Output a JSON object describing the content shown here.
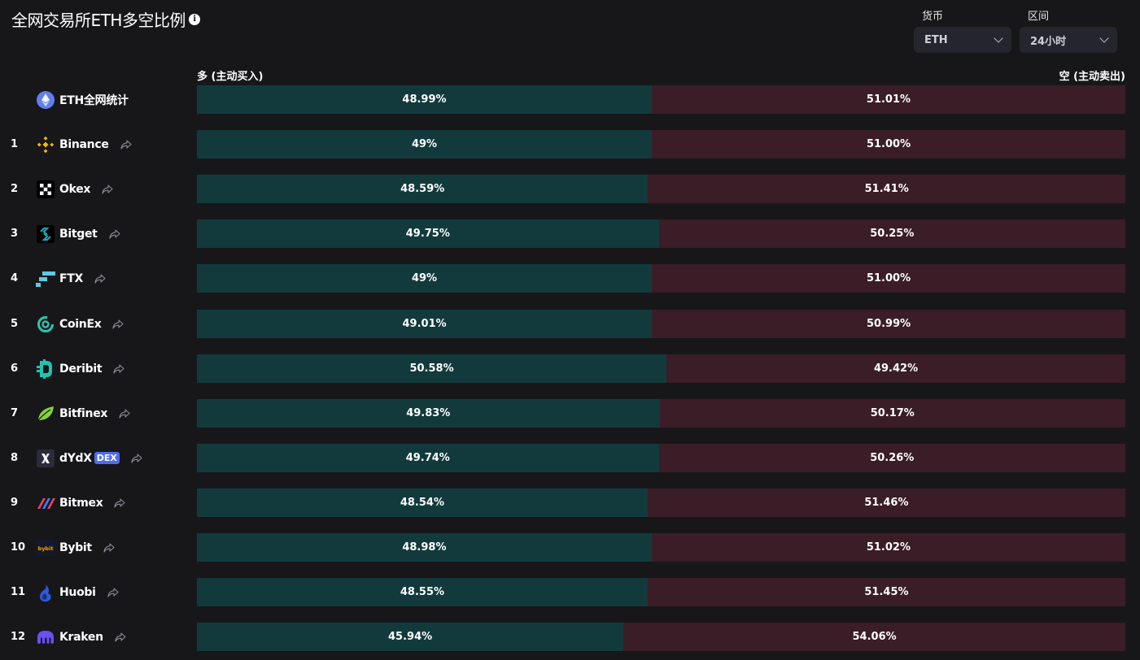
{
  "header": {
    "title": "全网交易所ETH多空比例",
    "info_icon": "info-icon"
  },
  "filters": {
    "currency": {
      "label": "货币",
      "value": "ETH"
    },
    "period": {
      "label": "区间",
      "value": "24小时"
    }
  },
  "labels": {
    "long": "多 (主动买入)",
    "short": "空 (主动卖出)"
  },
  "colors": {
    "long_bar": "#123a3c",
    "short_bar": "#3a1d26",
    "background": "#17171a"
  },
  "chart_data": {
    "type": "bar",
    "stacked": true,
    "orientation": "horizontal",
    "categories": [
      "ETH全网统计",
      "Binance",
      "Okex",
      "Bitget",
      "FTX",
      "CoinEx",
      "Deribit",
      "Bitfinex",
      "dYdX",
      "Bitmex",
      "Bybit",
      "Huobi",
      "Kraken"
    ],
    "series": [
      {
        "name": "多 (主动买入)",
        "values": [
          48.99,
          49,
          48.59,
          49.75,
          49,
          49.01,
          50.58,
          49.83,
          49.74,
          48.54,
          48.98,
          48.55,
          45.94
        ]
      },
      {
        "name": "空 (主动卖出)",
        "values": [
          51.01,
          51.0,
          51.41,
          50.25,
          51.0,
          50.99,
          49.42,
          50.17,
          50.26,
          51.46,
          51.02,
          51.45,
          54.06
        ]
      }
    ],
    "xlim": [
      0,
      100
    ]
  },
  "rows": [
    {
      "rank": "",
      "name": "ETH全网统计",
      "icon": "ethereum-icon",
      "long": "48.99%",
      "short": "51.01%",
      "long_pct": 48.99,
      "badge": "",
      "shareable": false
    },
    {
      "rank": "1",
      "name": "Binance",
      "icon": "binance-icon",
      "long": "49%",
      "short": "51.00%",
      "long_pct": 49,
      "badge": "",
      "shareable": true
    },
    {
      "rank": "2",
      "name": "Okex",
      "icon": "okex-icon",
      "long": "48.59%",
      "short": "51.41%",
      "long_pct": 48.59,
      "badge": "",
      "shareable": true
    },
    {
      "rank": "3",
      "name": "Bitget",
      "icon": "bitget-icon",
      "long": "49.75%",
      "short": "50.25%",
      "long_pct": 49.75,
      "badge": "",
      "shareable": true
    },
    {
      "rank": "4",
      "name": "FTX",
      "icon": "ftx-icon",
      "long": "49%",
      "short": "51.00%",
      "long_pct": 49,
      "badge": "",
      "shareable": true
    },
    {
      "rank": "5",
      "name": "CoinEx",
      "icon": "coinex-icon",
      "long": "49.01%",
      "short": "50.99%",
      "long_pct": 49.01,
      "badge": "",
      "shareable": true
    },
    {
      "rank": "6",
      "name": "Deribit",
      "icon": "deribit-icon",
      "long": "50.58%",
      "short": "49.42%",
      "long_pct": 50.58,
      "badge": "",
      "shareable": true
    },
    {
      "rank": "7",
      "name": "Bitfinex",
      "icon": "bitfinex-icon",
      "long": "49.83%",
      "short": "50.17%",
      "long_pct": 49.83,
      "badge": "",
      "shareable": true
    },
    {
      "rank": "8",
      "name": "dYdX",
      "icon": "dydx-icon",
      "long": "49.74%",
      "short": "50.26%",
      "long_pct": 49.74,
      "badge": "DEX",
      "shareable": true
    },
    {
      "rank": "9",
      "name": "Bitmex",
      "icon": "bitmex-icon",
      "long": "48.54%",
      "short": "51.46%",
      "long_pct": 48.54,
      "badge": "",
      "shareable": true
    },
    {
      "rank": "10",
      "name": "Bybit",
      "icon": "bybit-icon",
      "long": "48.98%",
      "short": "51.02%",
      "long_pct": 48.98,
      "badge": "",
      "shareable": true
    },
    {
      "rank": "11",
      "name": "Huobi",
      "icon": "huobi-icon",
      "long": "48.55%",
      "short": "51.45%",
      "long_pct": 48.55,
      "badge": "",
      "shareable": true
    },
    {
      "rank": "12",
      "name": "Kraken",
      "icon": "kraken-icon",
      "long": "45.94%",
      "short": "54.06%",
      "long_pct": 45.94,
      "badge": "",
      "shareable": true
    }
  ]
}
